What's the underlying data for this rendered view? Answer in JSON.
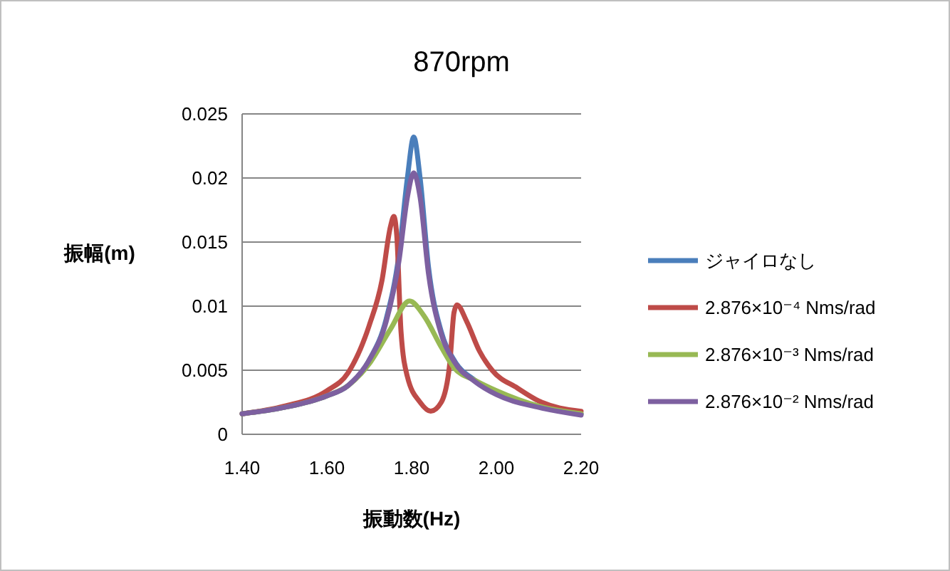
{
  "chart_data": {
    "type": "line",
    "title": "870rpm",
    "xlabel": "振動数(Hz)",
    "ylabel": "振幅(m)",
    "xlim": [
      1.4,
      2.2
    ],
    "xticks": [
      {
        "value": 1.4,
        "label": "1.40"
      },
      {
        "value": 1.6,
        "label": "1.60"
      },
      {
        "value": 1.8,
        "label": "1.80"
      },
      {
        "value": 2.0,
        "label": "2.00"
      },
      {
        "value": 2.2,
        "label": "2.20"
      }
    ],
    "ylim": [
      0,
      0.025
    ],
    "yticks": [
      0,
      0.005,
      0.01,
      0.015,
      0.02,
      0.025
    ],
    "grid": "y",
    "legend": "right",
    "marker": "none",
    "line_style": "solid",
    "series": [
      {
        "name": "ジャイロなし",
        "color": "#4a7ebb",
        "x": [
          1.4,
          1.5,
          1.6,
          1.65,
          1.7,
          1.74,
          1.77,
          1.79,
          1.805,
          1.82,
          1.84,
          1.87,
          1.9,
          1.95,
          2.0,
          2.1,
          2.2
        ],
        "values": [
          0.0016,
          0.0021,
          0.003,
          0.0038,
          0.0058,
          0.009,
          0.014,
          0.02,
          0.0232,
          0.02,
          0.013,
          0.008,
          0.0058,
          0.0042,
          0.0032,
          0.0022,
          0.0016
        ]
      },
      {
        "name": "2.876×10⁻⁴ Nms/rad",
        "color": "#be4b48",
        "x": [
          1.4,
          1.5,
          1.6,
          1.65,
          1.7,
          1.73,
          1.75,
          1.758,
          1.765,
          1.775,
          1.79,
          1.82,
          1.845,
          1.87,
          1.89,
          1.9,
          1.907,
          1.93,
          1.96,
          1.99,
          2.05,
          2.1,
          2.2
        ],
        "values": [
          0.0016,
          0.0022,
          0.0034,
          0.0048,
          0.0085,
          0.012,
          0.0162,
          0.017,
          0.0155,
          0.008,
          0.0045,
          0.0025,
          0.0018,
          0.0025,
          0.0055,
          0.0095,
          0.0101,
          0.0088,
          0.0065,
          0.005,
          0.0036,
          0.0026,
          0.0018
        ]
      },
      {
        "name": "2.876×10⁻³ Nms/rad",
        "color": "#98b954",
        "x": [
          1.4,
          1.5,
          1.6,
          1.65,
          1.7,
          1.75,
          1.795,
          1.83,
          1.87,
          1.9,
          1.95,
          2.0,
          2.1,
          2.2
        ],
        "values": [
          0.0016,
          0.0021,
          0.003,
          0.0038,
          0.0055,
          0.0082,
          0.0104,
          0.0092,
          0.0068,
          0.0052,
          0.0042,
          0.0034,
          0.0022,
          0.0016
        ]
      },
      {
        "name": "2.876×10⁻² Nms/rad",
        "color": "#7d60a0",
        "x": [
          1.4,
          1.5,
          1.6,
          1.65,
          1.7,
          1.74,
          1.77,
          1.79,
          1.805,
          1.82,
          1.84,
          1.87,
          1.9,
          1.95,
          2.0,
          2.1,
          2.2
        ],
        "values": [
          0.0016,
          0.0021,
          0.003,
          0.0038,
          0.0058,
          0.0088,
          0.0135,
          0.0185,
          0.0204,
          0.0185,
          0.0125,
          0.0078,
          0.0057,
          0.0041,
          0.0031,
          0.0021,
          0.0015
        ]
      }
    ]
  }
}
